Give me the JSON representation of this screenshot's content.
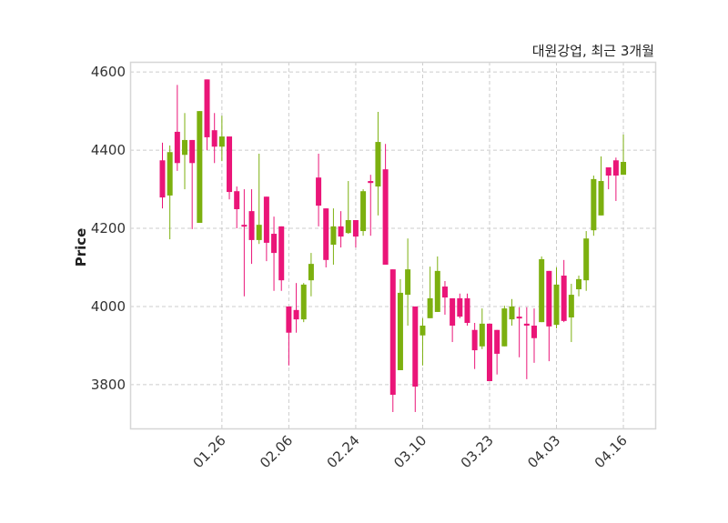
{
  "chart_data": {
    "type": "candlestick",
    "title": "대원강업, 최근 3개월",
    "xlabel": "",
    "ylabel": "Price",
    "ylim": [
      3688,
      4626
    ],
    "yticks": [
      3800,
      4000,
      4200,
      4400,
      4600
    ],
    "xtick_labels": [
      {
        "index": 8,
        "label": "01.26"
      },
      {
        "index": 17,
        "label": "02.06"
      },
      {
        "index": 26,
        "label": "02.24"
      },
      {
        "index": 35,
        "label": "03.10"
      },
      {
        "index": 44,
        "label": "03.23"
      },
      {
        "index": 53,
        "label": "04.03"
      },
      {
        "index": 62,
        "label": "04.16"
      }
    ],
    "grid": true,
    "colors": {
      "up": "#7cb00f",
      "down": "#ea1578",
      "grid": "#cccccc",
      "frame": "#d6d6d6"
    },
    "ohlc": [
      [
        4374,
        4419,
        4251,
        4279
      ],
      [
        4284,
        4412,
        4172,
        4395
      ],
      [
        4447,
        4567,
        4347,
        4367
      ],
      [
        4388,
        4495,
        4300,
        4426
      ],
      [
        4426,
        4426,
        4198,
        4367
      ],
      [
        4214,
        4500,
        4214,
        4500
      ],
      [
        4581,
        4581,
        4400,
        4433
      ],
      [
        4451,
        4495,
        4367,
        4409
      ],
      [
        4409,
        4488,
        4372,
        4435
      ],
      [
        4435,
        4435,
        4274,
        4293
      ],
      [
        4295,
        4307,
        4200,
        4249
      ],
      [
        4209,
        4300,
        4026,
        4205
      ],
      [
        4244,
        4300,
        4109,
        4170
      ],
      [
        4170,
        4391,
        4160,
        4209
      ],
      [
        4281,
        4281,
        4116,
        4163
      ],
      [
        4186,
        4230,
        4040,
        4137
      ],
      [
        4205,
        4205,
        4040,
        4067
      ],
      [
        4000,
        4000,
        3849,
        3933
      ],
      [
        3991,
        4060,
        3933,
        3967
      ],
      [
        3967,
        4060,
        3960,
        4056
      ],
      [
        4067,
        4137,
        4026,
        4109
      ],
      [
        4330,
        4391,
        4205,
        4258
      ],
      [
        4251,
        4251,
        4100,
        4119
      ],
      [
        4158,
        4251,
        4107,
        4205
      ],
      [
        4205,
        4244,
        4151,
        4179
      ],
      [
        4188,
        4321,
        4186,
        4221
      ],
      [
        4221,
        4221,
        4151,
        4179
      ],
      [
        4193,
        4300,
        4181,
        4295
      ],
      [
        4321,
        4337,
        4181,
        4316
      ],
      [
        4307,
        4498,
        4233,
        4421
      ],
      [
        4351,
        4416,
        4107,
        4107
      ],
      [
        4095,
        4095,
        3730,
        3774
      ],
      [
        3837,
        4070,
        3837,
        4035
      ],
      [
        4030,
        4174,
        3951,
        4095
      ],
      [
        4000,
        4000,
        3730,
        3795
      ],
      [
        3926,
        3970,
        3849,
        3951
      ],
      [
        3970,
        4102,
        3970,
        4021
      ],
      [
        3986,
        4128,
        3986,
        4091
      ],
      [
        4051,
        4065,
        3979,
        4023
      ],
      [
        4021,
        4021,
        3909,
        3951
      ],
      [
        4021,
        4033,
        3970,
        3974
      ],
      [
        4021,
        4033,
        3951,
        3958
      ],
      [
        3940,
        3958,
        3840,
        3888
      ],
      [
        3898,
        3995,
        3891,
        3956
      ],
      [
        3956,
        3956,
        3809,
        3809
      ],
      [
        3940,
        3940,
        3826,
        3879
      ],
      [
        3898,
        4002,
        3898,
        3995
      ],
      [
        3967,
        4019,
        3951,
        4000
      ],
      [
        3974,
        3998,
        3870,
        3970
      ],
      [
        3956,
        3998,
        3814,
        3951
      ],
      [
        3951,
        3995,
        3856,
        3919
      ],
      [
        3960,
        4128,
        3960,
        4121
      ],
      [
        4091,
        4091,
        3860,
        3949
      ],
      [
        3953,
        4100,
        3944,
        4056
      ],
      [
        4079,
        4119,
        3960,
        3963
      ],
      [
        3972,
        4058,
        3909,
        4030
      ],
      [
        4044,
        4079,
        4026,
        4070
      ],
      [
        4067,
        4193,
        4040,
        4174
      ],
      [
        4195,
        4335,
        4181,
        4326
      ],
      [
        4233,
        4384,
        4233,
        4321
      ],
      [
        4356,
        4356,
        4300,
        4335
      ],
      [
        4374,
        4381,
        4270,
        4335
      ],
      [
        4337,
        4440,
        4337,
        4370
      ]
    ]
  }
}
